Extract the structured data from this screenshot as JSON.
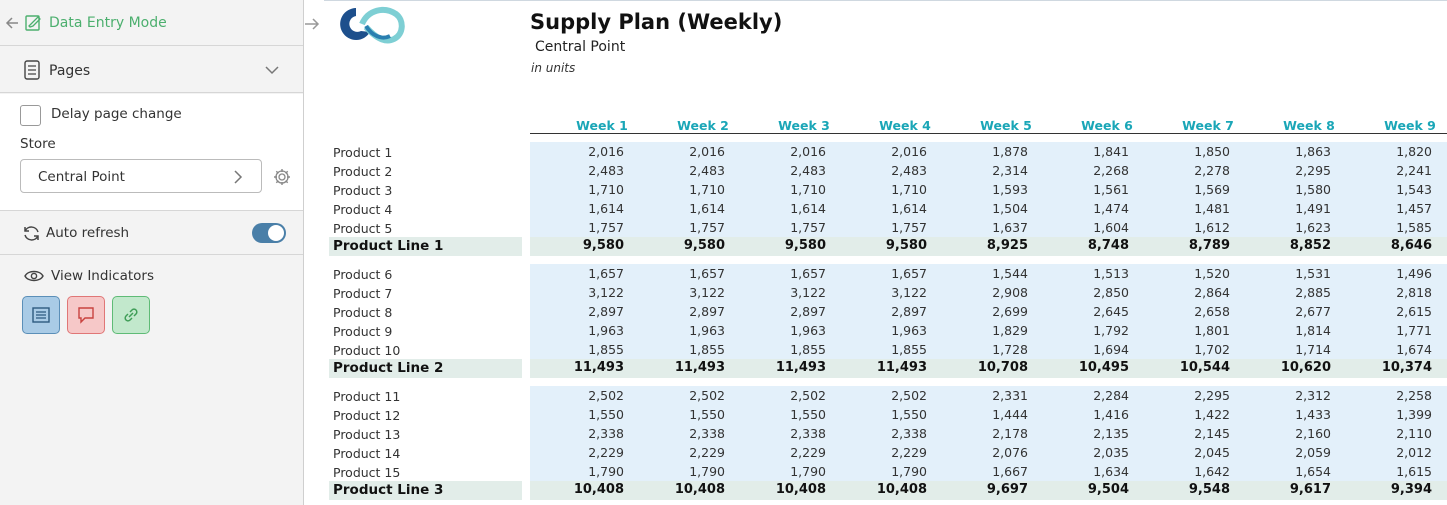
{
  "sidebar": {
    "mode_label": "Data Entry Mode",
    "pages_label": "Pages",
    "delay_label": "Delay page change",
    "store_label": "Store",
    "store_value": "Central Point",
    "refresh_label": "Auto refresh",
    "auto_refresh_on": true,
    "indicators_label": "View Indicators",
    "colors": {
      "accent_green": "#4caf6e",
      "toggle_blue": "#4a7fa8"
    }
  },
  "report": {
    "title": "Supply Plan (Weekly)",
    "subtitle": "Central Point",
    "units": "in units",
    "weeks": [
      "Week 1",
      "Week 2",
      "Week 3",
      "Week 4",
      "Week 5",
      "Week 6",
      "Week 7",
      "Week 8",
      "Week 9"
    ],
    "groups": [
      {
        "rows": [
          {
            "label": "Product 1",
            "values": [
              "2,016",
              "2,016",
              "2,016",
              "2,016",
              "1,878",
              "1,841",
              "1,850",
              "1,863",
              "1,820"
            ]
          },
          {
            "label": "Product 2",
            "values": [
              "2,483",
              "2,483",
              "2,483",
              "2,483",
              "2,314",
              "2,268",
              "2,278",
              "2,295",
              "2,241"
            ]
          },
          {
            "label": "Product 3",
            "values": [
              "1,710",
              "1,710",
              "1,710",
              "1,710",
              "1,593",
              "1,561",
              "1,569",
              "1,580",
              "1,543"
            ]
          },
          {
            "label": "Product 4",
            "values": [
              "1,614",
              "1,614",
              "1,614",
              "1,614",
              "1,504",
              "1,474",
              "1,481",
              "1,491",
              "1,457"
            ]
          },
          {
            "label": "Product 5",
            "values": [
              "1,757",
              "1,757",
              "1,757",
              "1,757",
              "1,637",
              "1,604",
              "1,612",
              "1,623",
              "1,585"
            ]
          }
        ],
        "total": {
          "label": "Product Line 1",
          "values": [
            "9,580",
            "9,580",
            "9,580",
            "9,580",
            "8,925",
            "8,748",
            "8,789",
            "8,852",
            "8,646"
          ]
        }
      },
      {
        "rows": [
          {
            "label": "Product 6",
            "values": [
              "1,657",
              "1,657",
              "1,657",
              "1,657",
              "1,544",
              "1,513",
              "1,520",
              "1,531",
              "1,496"
            ]
          },
          {
            "label": "Product 7",
            "values": [
              "3,122",
              "3,122",
              "3,122",
              "3,122",
              "2,908",
              "2,850",
              "2,864",
              "2,885",
              "2,818"
            ]
          },
          {
            "label": "Product 8",
            "values": [
              "2,897",
              "2,897",
              "2,897",
              "2,897",
              "2,699",
              "2,645",
              "2,658",
              "2,677",
              "2,615"
            ]
          },
          {
            "label": "Product 9",
            "values": [
              "1,963",
              "1,963",
              "1,963",
              "1,963",
              "1,829",
              "1,792",
              "1,801",
              "1,814",
              "1,771"
            ]
          },
          {
            "label": "Product 10",
            "values": [
              "1,855",
              "1,855",
              "1,855",
              "1,855",
              "1,728",
              "1,694",
              "1,702",
              "1,714",
              "1,674"
            ]
          }
        ],
        "total": {
          "label": "Product Line 2",
          "values": [
            "11,493",
            "11,493",
            "11,493",
            "11,493",
            "10,708",
            "10,495",
            "10,544",
            "10,620",
            "10,374"
          ]
        }
      },
      {
        "rows": [
          {
            "label": "Product 11",
            "values": [
              "2,502",
              "2,502",
              "2,502",
              "2,502",
              "2,331",
              "2,284",
              "2,295",
              "2,312",
              "2,258"
            ]
          },
          {
            "label": "Product 12",
            "values": [
              "1,550",
              "1,550",
              "1,550",
              "1,550",
              "1,444",
              "1,416",
              "1,422",
              "1,433",
              "1,399"
            ]
          },
          {
            "label": "Product 13",
            "values": [
              "2,338",
              "2,338",
              "2,338",
              "2,338",
              "2,178",
              "2,135",
              "2,145",
              "2,160",
              "2,110"
            ]
          },
          {
            "label": "Product 14",
            "values": [
              "2,229",
              "2,229",
              "2,229",
              "2,229",
              "2,076",
              "2,035",
              "2,045",
              "2,059",
              "2,012"
            ]
          },
          {
            "label": "Product 15",
            "values": [
              "1,790",
              "1,790",
              "1,790",
              "1,790",
              "1,667",
              "1,634",
              "1,642",
              "1,654",
              "1,615"
            ]
          }
        ],
        "total": {
          "label": "Product Line 3",
          "values": [
            "10,408",
            "10,408",
            "10,408",
            "10,408",
            "9,697",
            "9,504",
            "9,548",
            "9,617",
            "9,394"
          ]
        }
      }
    ]
  }
}
